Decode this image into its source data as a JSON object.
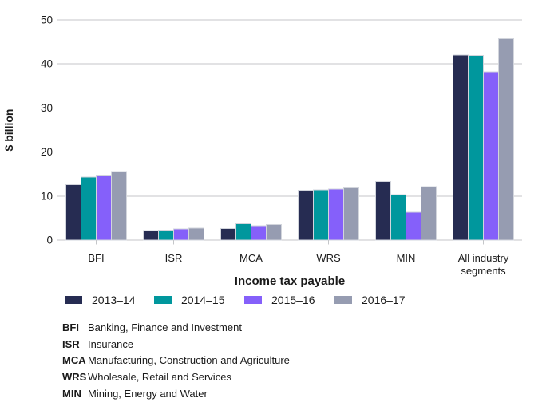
{
  "chart_data": {
    "type": "bar",
    "title": "",
    "xlabel": "Income tax payable",
    "ylabel": "$ billion",
    "ylim": [
      0,
      50
    ],
    "yticks": [
      0,
      10,
      20,
      30,
      40,
      50
    ],
    "grid": true,
    "legend_position": "bottom",
    "categories": [
      "BFI",
      "ISR",
      "MCA",
      "WRS",
      "MIN",
      "All industry\nsegments"
    ],
    "series": [
      {
        "name": "2013–14",
        "color": "#262C52",
        "values": [
          12.6,
          2.2,
          2.6,
          11.3,
          13.3,
          42.0
        ]
      },
      {
        "name": "2014–15",
        "color": "#00979D",
        "values": [
          14.3,
          2.3,
          3.7,
          11.4,
          10.3,
          41.9
        ]
      },
      {
        "name": "2015–16",
        "color": "#8560FA",
        "values": [
          14.6,
          2.5,
          3.3,
          11.6,
          6.3,
          38.2
        ]
      },
      {
        "name": "2016–17",
        "color": "#969CB1",
        "values": [
          15.6,
          2.7,
          3.5,
          11.9,
          12.1,
          45.7
        ]
      }
    ],
    "colors": {
      "gridline": "#c4c6c9",
      "bar_outline": "#d2d5dc",
      "text": "#1a1a1a"
    }
  },
  "footnotes": [
    {
      "abbr": "BFI",
      "desc": "Banking, Finance and Investment"
    },
    {
      "abbr": "ISR",
      "desc": "Insurance"
    },
    {
      "abbr": "MCA",
      "desc": "Manufacturing, Construction and Agriculture"
    },
    {
      "abbr": "WRS",
      "desc": "Wholesale, Retail and Services"
    },
    {
      "abbr": "MIN",
      "desc": "Mining, Energy and Water"
    }
  ]
}
